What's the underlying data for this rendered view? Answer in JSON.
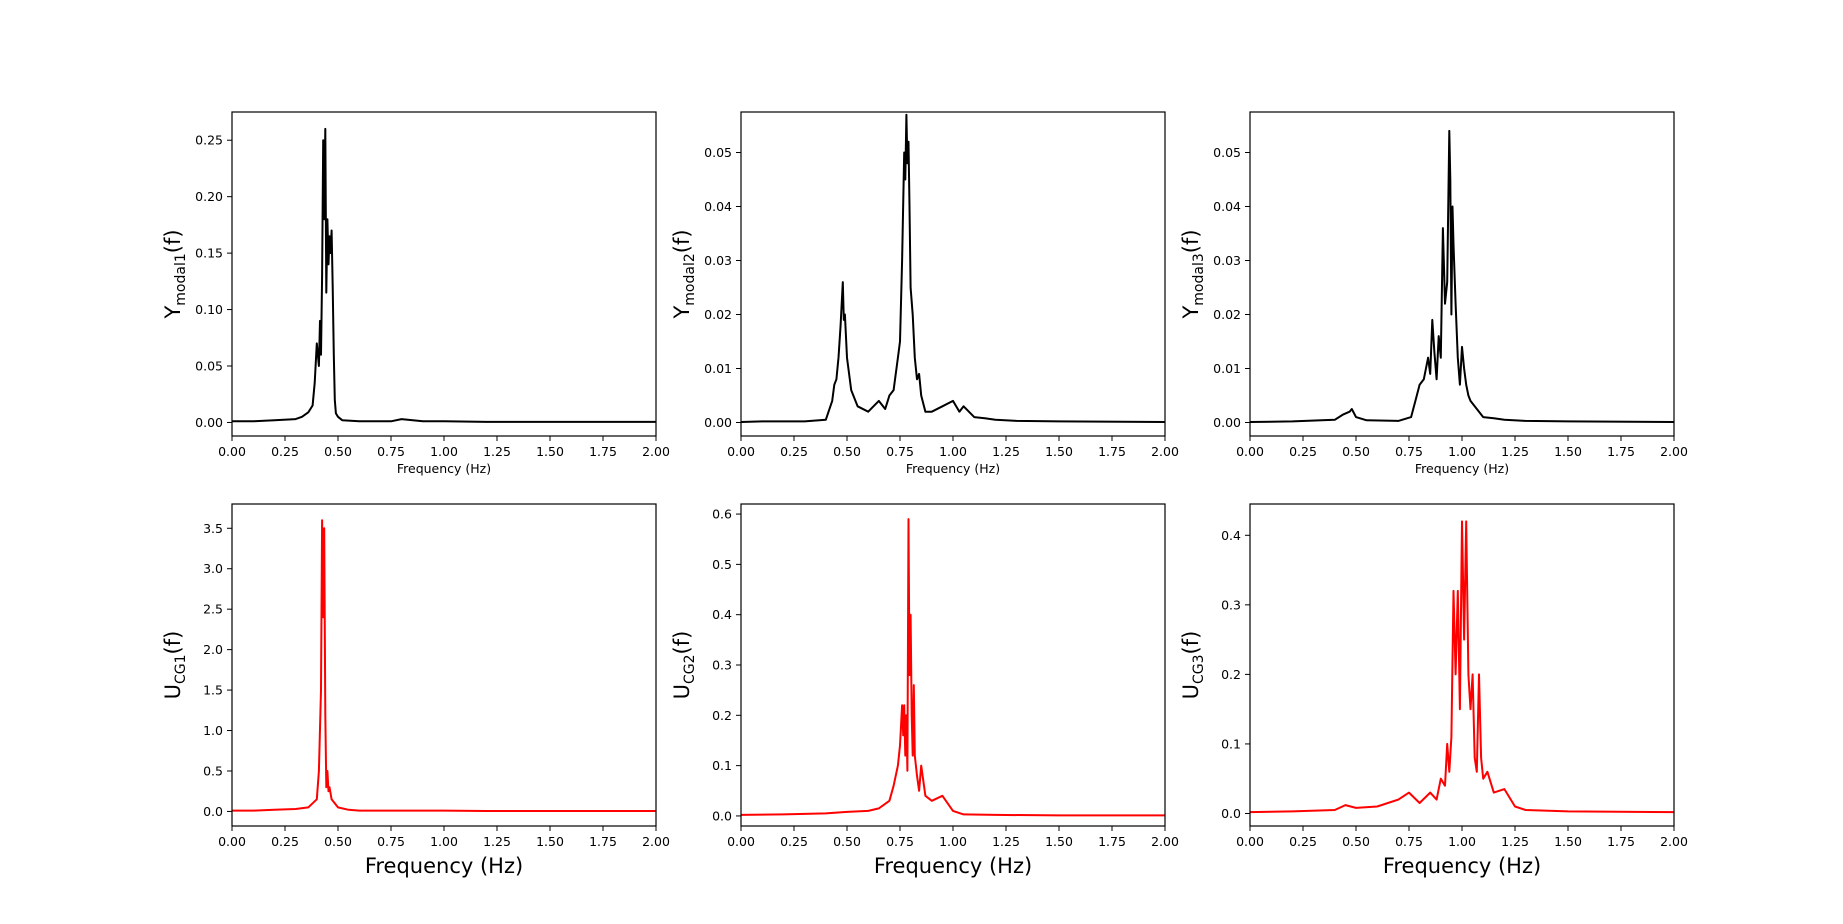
{
  "chart_data": [
    {
      "type": "line",
      "ylabel_main": "Y",
      "ylabel_sub": "modal1",
      "ylabel_suffix": "(f)",
      "xlabel": "Frequency (Hz)",
      "xlim": [
        0,
        2
      ],
      "ylim": [
        -0.012,
        0.275
      ],
      "xticks": [
        "0.00",
        "0.25",
        "0.50",
        "0.75",
        "1.00",
        "1.25",
        "1.50",
        "1.75",
        "2.00"
      ],
      "yticks": [
        0,
        0.05,
        0.1,
        0.15,
        0.2,
        0.25
      ],
      "ytick_labels": [
        "0.00",
        "0.05",
        "0.10",
        "0.15",
        "0.20",
        "0.25"
      ],
      "color": "#000000",
      "x": [
        0,
        0.1,
        0.2,
        0.3,
        0.33,
        0.36,
        0.38,
        0.39,
        0.4,
        0.41,
        0.415,
        0.42,
        0.425,
        0.43,
        0.435,
        0.44,
        0.445,
        0.45,
        0.455,
        0.46,
        0.465,
        0.47,
        0.475,
        0.48,
        0.485,
        0.49,
        0.5,
        0.52,
        0.6,
        0.75,
        0.8,
        0.9,
        1.0,
        1.2,
        1.5,
        2.0
      ],
      "y": [
        0.001,
        0.001,
        0.002,
        0.003,
        0.005,
        0.009,
        0.015,
        0.035,
        0.07,
        0.05,
        0.09,
        0.06,
        0.13,
        0.25,
        0.18,
        0.26,
        0.115,
        0.18,
        0.14,
        0.165,
        0.15,
        0.17,
        0.12,
        0.06,
        0.02,
        0.008,
        0.005,
        0.002,
        0.001,
        0.001,
        0.003,
        0.001,
        0.001,
        0.0005,
        0.0005,
        0.0005
      ]
    },
    {
      "type": "line",
      "ylabel_main": "Y",
      "ylabel_sub": "modal2",
      "ylabel_suffix": "(f)",
      "xlabel": "Frequency (Hz)",
      "xlim": [
        0,
        2
      ],
      "ylim": [
        -0.0025,
        0.0575
      ],
      "xticks": [
        "0.00",
        "0.25",
        "0.50",
        "0.75",
        "1.00",
        "1.25",
        "1.50",
        "1.75",
        "2.00"
      ],
      "yticks": [
        0,
        0.01,
        0.02,
        0.03,
        0.04,
        0.05
      ],
      "ytick_labels": [
        "0.00",
        "0.01",
        "0.02",
        "0.03",
        "0.04",
        "0.05"
      ],
      "color": "#000000",
      "x": [
        0,
        0.1,
        0.2,
        0.3,
        0.4,
        0.43,
        0.44,
        0.45,
        0.46,
        0.47,
        0.48,
        0.485,
        0.49,
        0.5,
        0.52,
        0.55,
        0.6,
        0.65,
        0.68,
        0.7,
        0.72,
        0.74,
        0.75,
        0.76,
        0.77,
        0.775,
        0.78,
        0.785,
        0.79,
        0.795,
        0.8,
        0.81,
        0.82,
        0.83,
        0.84,
        0.85,
        0.87,
        0.9,
        0.95,
        1.0,
        1.03,
        1.05,
        1.1,
        1.15,
        1.2,
        1.3,
        1.5,
        2.0
      ],
      "y": [
        0.0001,
        0.0002,
        0.0002,
        0.0002,
        0.0005,
        0.004,
        0.007,
        0.008,
        0.012,
        0.018,
        0.026,
        0.019,
        0.02,
        0.012,
        0.006,
        0.003,
        0.002,
        0.004,
        0.0025,
        0.005,
        0.006,
        0.012,
        0.015,
        0.03,
        0.05,
        0.045,
        0.057,
        0.048,
        0.052,
        0.04,
        0.025,
        0.02,
        0.012,
        0.008,
        0.009,
        0.005,
        0.002,
        0.002,
        0.003,
        0.004,
        0.002,
        0.003,
        0.001,
        0.0008,
        0.0005,
        0.0003,
        0.0002,
        0.0001
      ]
    },
    {
      "type": "line",
      "ylabel_main": "Y",
      "ylabel_sub": "modal3",
      "ylabel_suffix": "(f)",
      "xlabel": "Frequency (Hz)",
      "xlim": [
        0,
        2
      ],
      "ylim": [
        -0.0025,
        0.0575
      ],
      "xticks": [
        "0.00",
        "0.25",
        "0.50",
        "0.75",
        "1.00",
        "1.25",
        "1.50",
        "1.75",
        "2.00"
      ],
      "yticks": [
        0,
        0.01,
        0.02,
        0.03,
        0.04,
        0.05
      ],
      "ytick_labels": [
        "0.00",
        "0.01",
        "0.02",
        "0.03",
        "0.04",
        "0.05"
      ],
      "color": "#000000",
      "x": [
        0,
        0.2,
        0.4,
        0.44,
        0.47,
        0.48,
        0.5,
        0.55,
        0.7,
        0.76,
        0.78,
        0.8,
        0.82,
        0.84,
        0.85,
        0.86,
        0.87,
        0.88,
        0.89,
        0.9,
        0.91,
        0.92,
        0.93,
        0.94,
        0.945,
        0.95,
        0.955,
        0.96,
        0.97,
        0.98,
        0.99,
        1.0,
        1.01,
        1.02,
        1.03,
        1.04,
        1.06,
        1.08,
        1.1,
        1.15,
        1.2,
        1.3,
        1.5,
        2.0
      ],
      "y": [
        0.0001,
        0.0002,
        0.0005,
        0.0015,
        0.002,
        0.0025,
        0.001,
        0.0004,
        0.0003,
        0.001,
        0.004,
        0.007,
        0.008,
        0.012,
        0.009,
        0.019,
        0.013,
        0.008,
        0.016,
        0.012,
        0.036,
        0.022,
        0.026,
        0.054,
        0.045,
        0.02,
        0.04,
        0.033,
        0.022,
        0.012,
        0.007,
        0.014,
        0.01,
        0.007,
        0.005,
        0.004,
        0.003,
        0.002,
        0.001,
        0.0008,
        0.0005,
        0.0003,
        0.0002,
        0.0001
      ]
    },
    {
      "type": "line",
      "ylabel_main": "U",
      "ylabel_sub": "CG1",
      "ylabel_suffix": "(f)",
      "xlabel": "Frequency (Hz)",
      "xlim": [
        0,
        2
      ],
      "ylim": [
        -0.18,
        3.8
      ],
      "xticks": [
        "0.00",
        "0.25",
        "0.50",
        "0.75",
        "1.00",
        "1.25",
        "1.50",
        "1.75",
        "2.00"
      ],
      "yticks": [
        0,
        0.5,
        1.0,
        1.5,
        2.0,
        2.5,
        3.0,
        3.5
      ],
      "ytick_labels": [
        "0.0",
        "0.5",
        "1.0",
        "1.5",
        "2.0",
        "2.5",
        "3.0",
        "3.5"
      ],
      "color": "#ff0000",
      "x": [
        0,
        0.1,
        0.2,
        0.3,
        0.36,
        0.38,
        0.4,
        0.41,
        0.42,
        0.425,
        0.43,
        0.435,
        0.44,
        0.445,
        0.45,
        0.455,
        0.46,
        0.47,
        0.5,
        0.55,
        0.6,
        0.8,
        1.0,
        1.2,
        1.5,
        2.0
      ],
      "y": [
        0.01,
        0.01,
        0.02,
        0.03,
        0.05,
        0.1,
        0.15,
        0.5,
        1.5,
        3.6,
        2.4,
        3.5,
        1.2,
        0.3,
        0.5,
        0.25,
        0.3,
        0.15,
        0.05,
        0.02,
        0.01,
        0.01,
        0.01,
        0.005,
        0.005,
        0.005
      ]
    },
    {
      "type": "line",
      "ylabel_main": "U",
      "ylabel_sub": "CG2",
      "ylabel_suffix": "(f)",
      "xlabel": "Frequency (Hz)",
      "xlim": [
        0,
        2
      ],
      "ylim": [
        -0.02,
        0.62
      ],
      "xticks": [
        "0.00",
        "0.25",
        "0.50",
        "0.75",
        "1.00",
        "1.25",
        "1.50",
        "1.75",
        "2.00"
      ],
      "yticks": [
        0,
        0.1,
        0.2,
        0.3,
        0.4,
        0.5,
        0.6
      ],
      "ytick_labels": [
        "0.0",
        "0.1",
        "0.2",
        "0.3",
        "0.4",
        "0.5",
        "0.6"
      ],
      "color": "#ff0000",
      "x": [
        0,
        0.2,
        0.4,
        0.5,
        0.6,
        0.65,
        0.7,
        0.72,
        0.74,
        0.75,
        0.76,
        0.765,
        0.77,
        0.775,
        0.78,
        0.785,
        0.79,
        0.795,
        0.8,
        0.805,
        0.81,
        0.815,
        0.82,
        0.83,
        0.84,
        0.85,
        0.87,
        0.9,
        0.95,
        1.0,
        1.05,
        1.2,
        1.5,
        2.0
      ],
      "y": [
        0.002,
        0.003,
        0.005,
        0.008,
        0.01,
        0.015,
        0.03,
        0.06,
        0.1,
        0.14,
        0.22,
        0.16,
        0.22,
        0.12,
        0.2,
        0.09,
        0.59,
        0.28,
        0.4,
        0.2,
        0.12,
        0.26,
        0.12,
        0.08,
        0.05,
        0.1,
        0.04,
        0.03,
        0.04,
        0.01,
        0.003,
        0.002,
        0.001,
        0.001
      ]
    },
    {
      "type": "line",
      "ylabel_main": "U",
      "ylabel_sub": "CG3",
      "ylabel_suffix": "(f)",
      "xlabel": "Frequency (Hz)",
      "xlim": [
        0,
        2
      ],
      "ylim": [
        -0.018,
        0.445
      ],
      "xticks": [
        "0.00",
        "0.25",
        "0.50",
        "0.75",
        "1.00",
        "1.25",
        "1.50",
        "1.75",
        "2.00"
      ],
      "yticks": [
        0,
        0.1,
        0.2,
        0.3,
        0.4
      ],
      "ytick_labels": [
        "0.0",
        "0.1",
        "0.2",
        "0.3",
        "0.4"
      ],
      "color": "#ff0000",
      "x": [
        0,
        0.2,
        0.4,
        0.45,
        0.5,
        0.6,
        0.7,
        0.75,
        0.8,
        0.85,
        0.88,
        0.9,
        0.92,
        0.93,
        0.94,
        0.95,
        0.96,
        0.97,
        0.98,
        0.99,
        1.0,
        1.01,
        1.02,
        1.03,
        1.04,
        1.05,
        1.06,
        1.07,
        1.08,
        1.09,
        1.1,
        1.12,
        1.15,
        1.2,
        1.25,
        1.3,
        1.5,
        2.0
      ],
      "y": [
        0.002,
        0.003,
        0.005,
        0.012,
        0.008,
        0.01,
        0.02,
        0.03,
        0.015,
        0.03,
        0.02,
        0.05,
        0.04,
        0.1,
        0.06,
        0.11,
        0.32,
        0.2,
        0.32,
        0.15,
        0.42,
        0.25,
        0.42,
        0.2,
        0.15,
        0.2,
        0.08,
        0.06,
        0.2,
        0.08,
        0.05,
        0.06,
        0.03,
        0.035,
        0.01,
        0.005,
        0.003,
        0.002
      ]
    }
  ]
}
